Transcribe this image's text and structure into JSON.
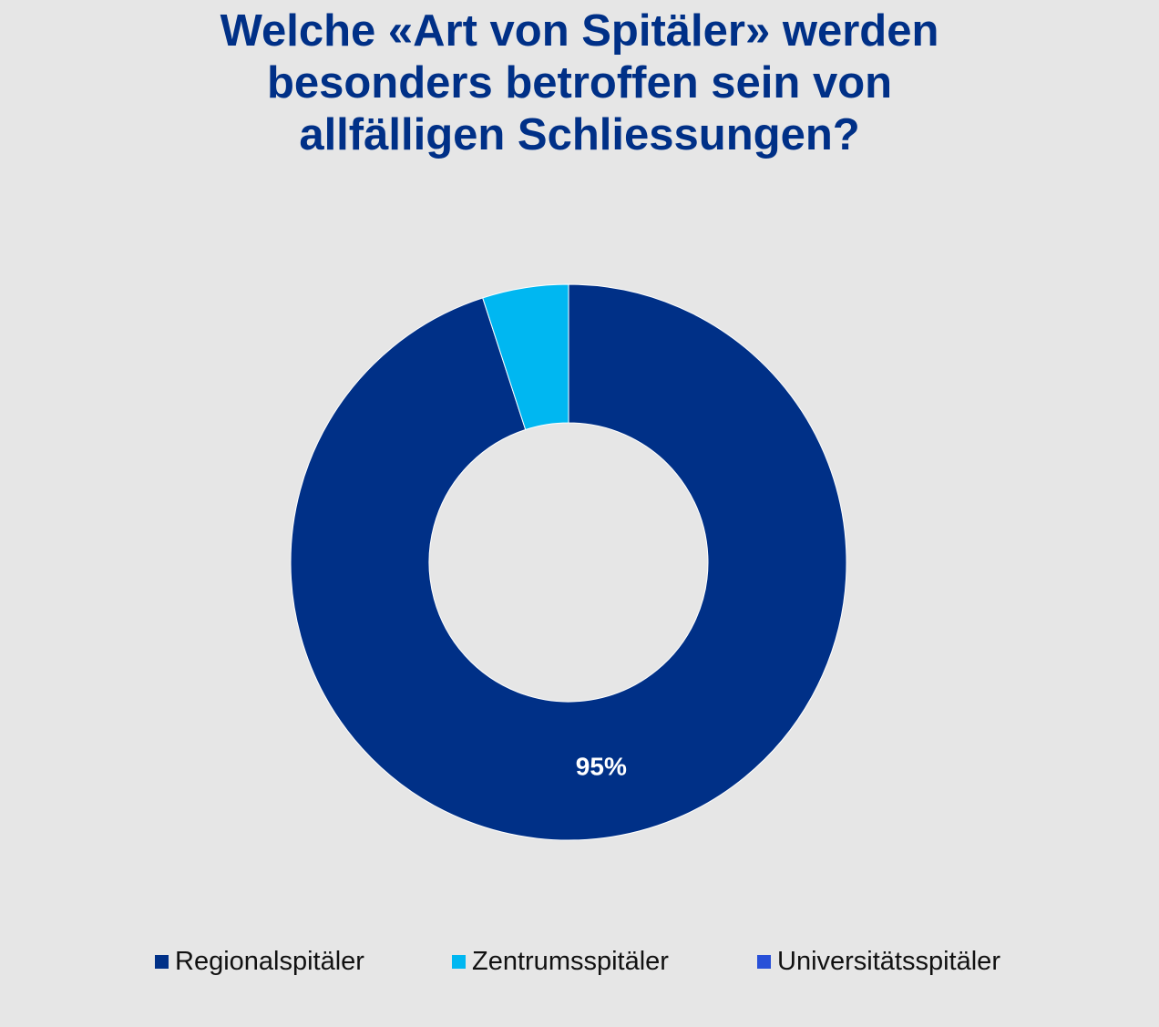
{
  "chart_data": {
    "type": "pie",
    "variant": "donut",
    "title_lines": [
      "Welche «Art von Spitäler» werden",
      "besonders betroffen sein von",
      "allfälligen Schliessungen?"
    ],
    "categories": [
      "Regionalspitäler",
      "Zentrumsspitäler",
      "Universitätsspitäler"
    ],
    "values": [
      95,
      5,
      0
    ],
    "data_labels": [
      "95%",
      "",
      ""
    ],
    "colors": [
      "#003087",
      "#00b7f1",
      "#2850d8"
    ],
    "legend_position": "bottom",
    "label_color": "#ffffff"
  }
}
